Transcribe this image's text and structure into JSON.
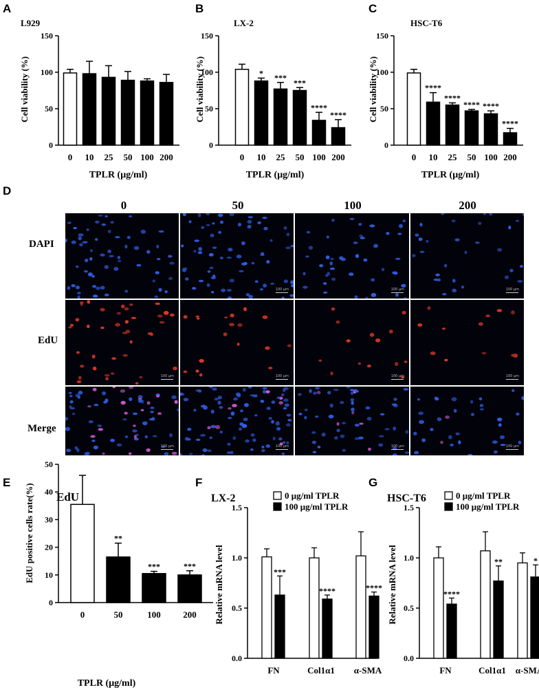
{
  "panels": {
    "A": "A",
    "B": "B",
    "C": "C",
    "D": "D",
    "E": "E",
    "F": "F",
    "G": "G"
  },
  "chart_data": [
    {
      "id": "A",
      "type": "bar",
      "title": "L929",
      "xlabel": "TPLR (μg/ml)",
      "ylabel": "Cell viability (%)",
      "categories": [
        "0",
        "10",
        "25",
        "50",
        "100",
        "200"
      ],
      "values": [
        99,
        98,
        93,
        89,
        88,
        86
      ],
      "errors": [
        5,
        17,
        16,
        12,
        3,
        11
      ],
      "significance": [
        "",
        "",
        "",
        "",
        "",
        ""
      ],
      "ylim": [
        0,
        150
      ],
      "yticks": [
        0,
        50,
        100,
        150
      ],
      "bar_colors": [
        "#ffffff",
        "#000000",
        "#000000",
        "#000000",
        "#000000",
        "#000000"
      ]
    },
    {
      "id": "B",
      "type": "bar",
      "title": "LX-2",
      "xlabel": "TPLR (μg/ml)",
      "ylabel": "Cell viability (%)",
      "categories": [
        "0",
        "10",
        "25",
        "50",
        "100",
        "200"
      ],
      "values": [
        104,
        88,
        77,
        75,
        34,
        24
      ],
      "errors": [
        7,
        4,
        9,
        4,
        11,
        11
      ],
      "significance": [
        "",
        "*",
        "***",
        "***",
        "****",
        "****"
      ],
      "ylim": [
        0,
        150
      ],
      "yticks": [
        0,
        50,
        100,
        150
      ],
      "bar_colors": [
        "#ffffff",
        "#000000",
        "#000000",
        "#000000",
        "#000000",
        "#000000"
      ]
    },
    {
      "id": "C",
      "type": "bar",
      "title": "HSC-T6",
      "xlabel": "TPLR (μg/ml)",
      "ylabel": "Cell viability (%)",
      "categories": [
        "0",
        "10",
        "25",
        "50",
        "100",
        "200"
      ],
      "values": [
        99,
        59,
        55,
        47,
        43,
        17
      ],
      "errors": [
        5,
        13,
        3,
        2,
        4,
        6
      ],
      "significance": [
        "",
        "****",
        "****",
        "****",
        "****",
        "****"
      ],
      "ylim": [
        0,
        150
      ],
      "yticks": [
        0,
        50,
        100,
        150
      ],
      "bar_colors": [
        "#ffffff",
        "#000000",
        "#000000",
        "#000000",
        "#000000",
        "#000000"
      ]
    },
    {
      "id": "E",
      "type": "bar",
      "title": "EdU",
      "xlabel": "TPLR (μg/ml)",
      "ylabel": "EdU positive cells rate(%)",
      "categories": [
        "0",
        "50",
        "100",
        "200"
      ],
      "values": [
        35.5,
        16.5,
        10.5,
        10
      ],
      "errors": [
        10.5,
        5,
        0.8,
        1.5
      ],
      "significance": [
        "",
        "**",
        "***",
        "***"
      ],
      "ylim": [
        0,
        50
      ],
      "yticks": [
        0,
        10,
        20,
        30,
        40,
        50
      ],
      "bar_colors": [
        "#ffffff",
        "#000000",
        "#000000",
        "#000000"
      ]
    },
    {
      "id": "F",
      "type": "grouped-bar",
      "title": "LX-2",
      "xlabel": "",
      "ylabel": "Relative mRNA level",
      "categories": [
        "FN",
        "Col1α1",
        "α-SMA"
      ],
      "series": [
        {
          "name": "0 μg/ml  TPLR",
          "values": [
            1.01,
            1.0,
            1.02
          ],
          "errors": [
            0.08,
            0.1,
            0.24
          ],
          "color": "#ffffff"
        },
        {
          "name": "100 μg/ml TPLR",
          "values": [
            0.63,
            0.59,
            0.62
          ],
          "errors": [
            0.19,
            0.04,
            0.04
          ],
          "color": "#000000"
        }
      ],
      "significance": [
        "***",
        "****",
        "****"
      ],
      "ylim": [
        0,
        1.5
      ],
      "yticks": [
        "0.0",
        "0.5",
        "1.0",
        "1.5"
      ]
    },
    {
      "id": "G",
      "type": "grouped-bar",
      "title": "HSC-T6",
      "xlabel": "",
      "ylabel": "Relative mRNA level",
      "categories": [
        "FN",
        "Col1α1",
        "α-SMA"
      ],
      "series": [
        {
          "name": "0 μg/ml TPLR",
          "values": [
            1.0,
            1.07,
            0.95
          ],
          "errors": [
            0.11,
            0.19,
            0.1
          ],
          "color": "#ffffff"
        },
        {
          "name": "100 μg/ml TPLR",
          "values": [
            0.54,
            0.77,
            0.81
          ],
          "errors": [
            0.06,
            0.15,
            0.12
          ],
          "color": "#000000"
        }
      ],
      "significance": [
        "****",
        "**",
        "*"
      ],
      "ylim": [
        0,
        1.5
      ],
      "yticks": [
        "0.0",
        "0.5",
        "1.0",
        "1.5"
      ]
    }
  ],
  "micrographs": {
    "columns": [
      "0",
      "50",
      "100",
      "200"
    ],
    "rows": [
      "DAPI",
      "EdU",
      "Merge"
    ],
    "scale_label": "100 μm",
    "colors": {
      "dapi": "#2f5fe6",
      "edu": "#e03a2a",
      "merge_pink": "#d05ad0",
      "background": "#02020a"
    }
  }
}
